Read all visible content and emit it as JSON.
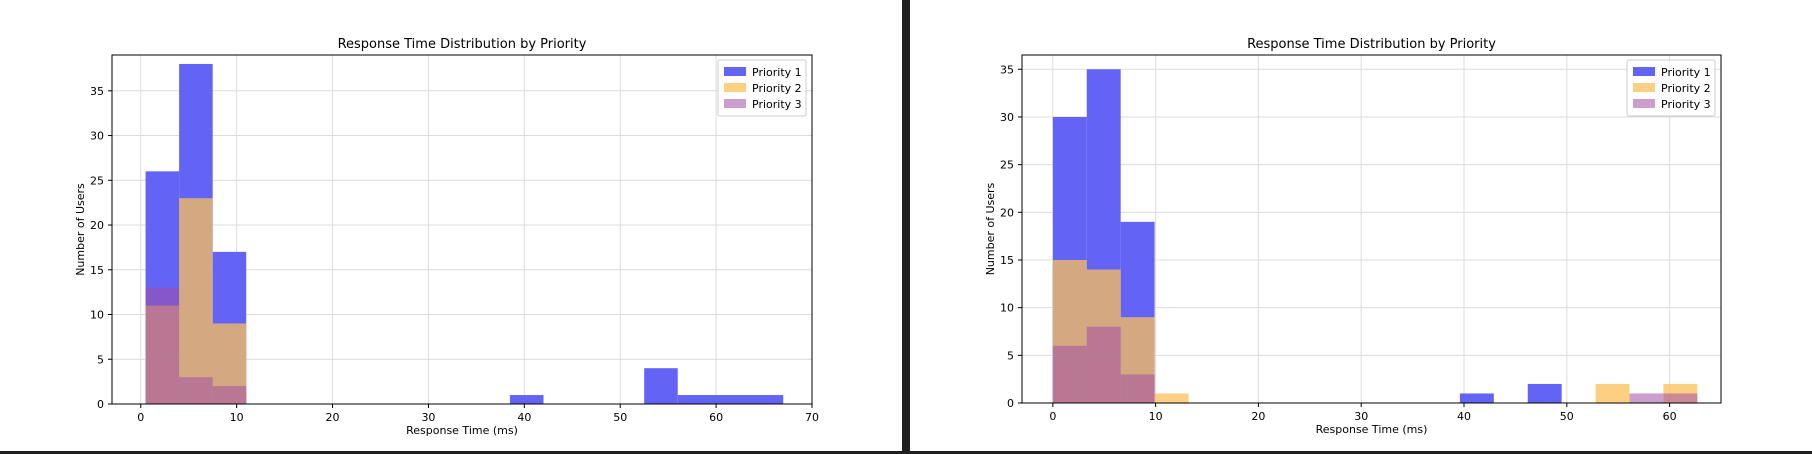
{
  "chart_data": [
    {
      "type": "bar",
      "title": "Response Time Distribution by Priority",
      "xlabel": "Response Time (ms)",
      "ylabel": "Number of Users",
      "xlim": [
        -3,
        70
      ],
      "ylim": [
        0,
        39
      ],
      "xticks": [
        0,
        10,
        20,
        30,
        40,
        50,
        60,
        70
      ],
      "yticks": [
        0,
        5,
        10,
        15,
        20,
        25,
        30,
        35
      ],
      "grid": true,
      "legend_position": "top-right",
      "series": [
        {
          "name": "Priority 1",
          "color": "#5b5bf5",
          "bins": [
            [
              0.5,
              4,
              26
            ],
            [
              4,
              7.5,
              38
            ],
            [
              7.5,
              11,
              17
            ],
            [
              38.5,
              42,
              1
            ],
            [
              52.5,
              56,
              4
            ],
            [
              56,
              67,
              1
            ]
          ]
        },
        {
          "name": "Priority 2",
          "color": "#f9c05a",
          "bins": [
            [
              0.5,
              4,
              11
            ],
            [
              4,
              7.5,
              23
            ],
            [
              7.5,
              11,
              9
            ]
          ]
        },
        {
          "name": "Priority 3",
          "color": "#a34fa4",
          "bins": [
            [
              0.5,
              4,
              13
            ],
            [
              4,
              7.5,
              3
            ],
            [
              7.5,
              11,
              2
            ]
          ]
        }
      ]
    },
    {
      "type": "bar",
      "title": "Response Time Distribution by Priority",
      "xlabel": "Response Time (ms)",
      "ylabel": "Number of Users",
      "xlim": [
        -3,
        65
      ],
      "ylim": [
        0,
        36.5
      ],
      "xticks": [
        0,
        10,
        20,
        30,
        40,
        50,
        60
      ],
      "yticks": [
        0,
        5,
        10,
        15,
        20,
        25,
        30,
        35
      ],
      "grid": true,
      "legend_position": "top-right",
      "series": [
        {
          "name": "Priority 1",
          "color": "#5b5bf5",
          "bins": [
            [
              0,
              3.3,
              30
            ],
            [
              3.3,
              6.6,
              35
            ],
            [
              6.6,
              9.9,
              19
            ],
            [
              39.6,
              42.9,
              1
            ],
            [
              46.2,
              49.5,
              2
            ]
          ]
        },
        {
          "name": "Priority 2",
          "color": "#f9c05a",
          "bins": [
            [
              0,
              3.3,
              15
            ],
            [
              3.3,
              6.6,
              14
            ],
            [
              6.6,
              9.9,
              9
            ],
            [
              9.9,
              13.2,
              1
            ],
            [
              52.8,
              56.1,
              2
            ],
            [
              59.4,
              62.7,
              2
            ]
          ]
        },
        {
          "name": "Priority 3",
          "color": "#a34fa4",
          "bins": [
            [
              0,
              3.3,
              6
            ],
            [
              3.3,
              6.6,
              8
            ],
            [
              6.6,
              9.9,
              3
            ],
            [
              56.1,
              59.4,
              1
            ],
            [
              59.4,
              62.7,
              1
            ]
          ]
        }
      ]
    }
  ]
}
